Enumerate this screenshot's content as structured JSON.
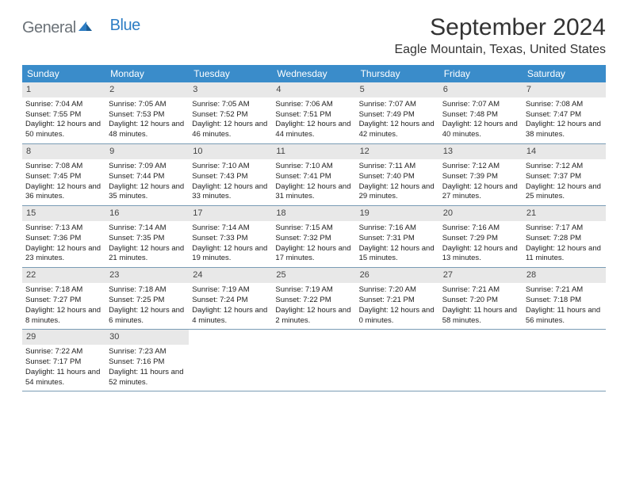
{
  "brand": {
    "part1": "General",
    "part2": "Blue"
  },
  "title": "September 2024",
  "location": "Eagle Mountain, Texas, United States",
  "colors": {
    "header_bg": "#3a8cca",
    "header_text": "#ffffff",
    "daynum_bg": "#e8e8e8",
    "week_border": "#7a9cb5",
    "brand_gray": "#6b7278",
    "brand_blue": "#2d7dc4"
  },
  "day_names": [
    "Sunday",
    "Monday",
    "Tuesday",
    "Wednesday",
    "Thursday",
    "Friday",
    "Saturday"
  ],
  "days": [
    {
      "n": 1,
      "sr": "7:04 AM",
      "ss": "7:55 PM",
      "dl": "12 hours and 50 minutes."
    },
    {
      "n": 2,
      "sr": "7:05 AM",
      "ss": "7:53 PM",
      "dl": "12 hours and 48 minutes."
    },
    {
      "n": 3,
      "sr": "7:05 AM",
      "ss": "7:52 PM",
      "dl": "12 hours and 46 minutes."
    },
    {
      "n": 4,
      "sr": "7:06 AM",
      "ss": "7:51 PM",
      "dl": "12 hours and 44 minutes."
    },
    {
      "n": 5,
      "sr": "7:07 AM",
      "ss": "7:49 PM",
      "dl": "12 hours and 42 minutes."
    },
    {
      "n": 6,
      "sr": "7:07 AM",
      "ss": "7:48 PM",
      "dl": "12 hours and 40 minutes."
    },
    {
      "n": 7,
      "sr": "7:08 AM",
      "ss": "7:47 PM",
      "dl": "12 hours and 38 minutes."
    },
    {
      "n": 8,
      "sr": "7:08 AM",
      "ss": "7:45 PM",
      "dl": "12 hours and 36 minutes."
    },
    {
      "n": 9,
      "sr": "7:09 AM",
      "ss": "7:44 PM",
      "dl": "12 hours and 35 minutes."
    },
    {
      "n": 10,
      "sr": "7:10 AM",
      "ss": "7:43 PM",
      "dl": "12 hours and 33 minutes."
    },
    {
      "n": 11,
      "sr": "7:10 AM",
      "ss": "7:41 PM",
      "dl": "12 hours and 31 minutes."
    },
    {
      "n": 12,
      "sr": "7:11 AM",
      "ss": "7:40 PM",
      "dl": "12 hours and 29 minutes."
    },
    {
      "n": 13,
      "sr": "7:12 AM",
      "ss": "7:39 PM",
      "dl": "12 hours and 27 minutes."
    },
    {
      "n": 14,
      "sr": "7:12 AM",
      "ss": "7:37 PM",
      "dl": "12 hours and 25 minutes."
    },
    {
      "n": 15,
      "sr": "7:13 AM",
      "ss": "7:36 PM",
      "dl": "12 hours and 23 minutes."
    },
    {
      "n": 16,
      "sr": "7:14 AM",
      "ss": "7:35 PM",
      "dl": "12 hours and 21 minutes."
    },
    {
      "n": 17,
      "sr": "7:14 AM",
      "ss": "7:33 PM",
      "dl": "12 hours and 19 minutes."
    },
    {
      "n": 18,
      "sr": "7:15 AM",
      "ss": "7:32 PM",
      "dl": "12 hours and 17 minutes."
    },
    {
      "n": 19,
      "sr": "7:16 AM",
      "ss": "7:31 PM",
      "dl": "12 hours and 15 minutes."
    },
    {
      "n": 20,
      "sr": "7:16 AM",
      "ss": "7:29 PM",
      "dl": "12 hours and 13 minutes."
    },
    {
      "n": 21,
      "sr": "7:17 AM",
      "ss": "7:28 PM",
      "dl": "12 hours and 11 minutes."
    },
    {
      "n": 22,
      "sr": "7:18 AM",
      "ss": "7:27 PM",
      "dl": "12 hours and 8 minutes."
    },
    {
      "n": 23,
      "sr": "7:18 AM",
      "ss": "7:25 PM",
      "dl": "12 hours and 6 minutes."
    },
    {
      "n": 24,
      "sr": "7:19 AM",
      "ss": "7:24 PM",
      "dl": "12 hours and 4 minutes."
    },
    {
      "n": 25,
      "sr": "7:19 AM",
      "ss": "7:22 PM",
      "dl": "12 hours and 2 minutes."
    },
    {
      "n": 26,
      "sr": "7:20 AM",
      "ss": "7:21 PM",
      "dl": "12 hours and 0 minutes."
    },
    {
      "n": 27,
      "sr": "7:21 AM",
      "ss": "7:20 PM",
      "dl": "11 hours and 58 minutes."
    },
    {
      "n": 28,
      "sr": "7:21 AM",
      "ss": "7:18 PM",
      "dl": "11 hours and 56 minutes."
    },
    {
      "n": 29,
      "sr": "7:22 AM",
      "ss": "7:17 PM",
      "dl": "11 hours and 54 minutes."
    },
    {
      "n": 30,
      "sr": "7:23 AM",
      "ss": "7:16 PM",
      "dl": "11 hours and 52 minutes."
    }
  ],
  "first_weekday_offset": 0,
  "labels": {
    "sunrise": "Sunrise:",
    "sunset": "Sunset:",
    "daylight": "Daylight:"
  }
}
